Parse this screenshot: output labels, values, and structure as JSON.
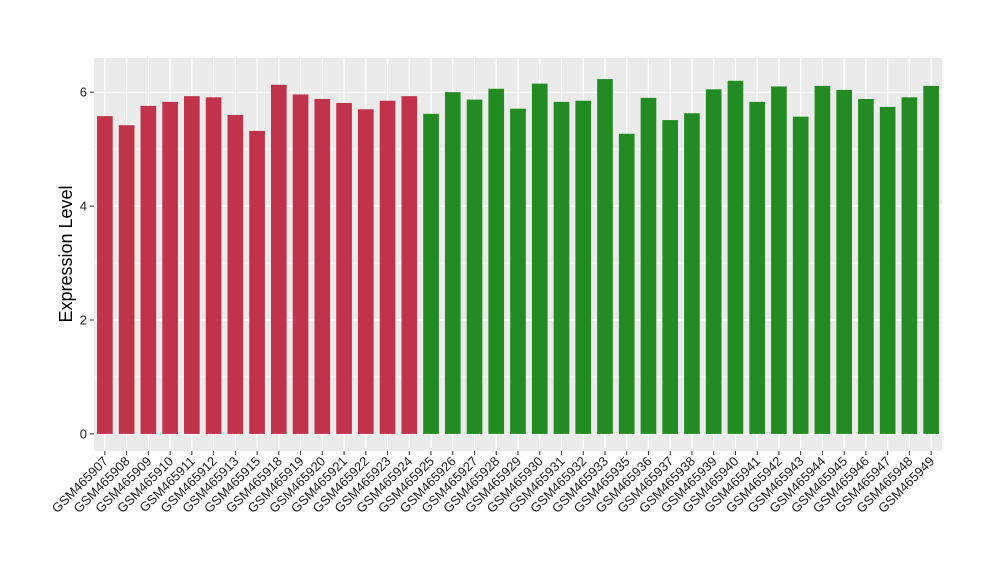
{
  "chart_data": {
    "type": "bar",
    "title": "",
    "xlabel": "",
    "ylabel": "Expression Level",
    "ylim": [
      -0.3,
      6.6
    ],
    "yticks": [
      0,
      2,
      4,
      6
    ],
    "grid": true,
    "panel_background": "#ebebeb",
    "grid_color": "#ffffff",
    "categories": [
      "GSM465907",
      "GSM465908",
      "GSM465909",
      "GSM465910",
      "GSM465911",
      "GSM465912",
      "GSM465913",
      "GSM465915",
      "GSM465918",
      "GSM465919",
      "GSM465920",
      "GSM465921",
      "GSM465922",
      "GSM465923",
      "GSM465924",
      "GSM465925",
      "GSM465926",
      "GSM465927",
      "GSM465928",
      "GSM465929",
      "GSM465930",
      "GSM465931",
      "GSM465932",
      "GSM465933",
      "GSM465935",
      "GSM465936",
      "GSM465937",
      "GSM465938",
      "GSM465939",
      "GSM465940",
      "GSM465941",
      "GSM465942",
      "GSM465943",
      "GSM465944",
      "GSM465945",
      "GSM465946",
      "GSM465947",
      "GSM465948",
      "GSM465949"
    ],
    "values": [
      5.58,
      5.42,
      5.76,
      5.83,
      5.93,
      5.91,
      5.6,
      5.32,
      6.13,
      5.96,
      5.88,
      5.81,
      5.7,
      5.85,
      5.93,
      5.62,
      6.0,
      5.87,
      6.06,
      5.71,
      6.15,
      5.83,
      5.85,
      6.23,
      5.27,
      5.9,
      5.51,
      5.63,
      6.05,
      6.2,
      5.83,
      6.1,
      5.57,
      6.11,
      6.04,
      5.88,
      5.74,
      5.91,
      6.11
    ],
    "groups": [
      "red",
      "red",
      "red",
      "red",
      "red",
      "red",
      "red",
      "red",
      "red",
      "red",
      "red",
      "red",
      "red",
      "red",
      "red",
      "green",
      "green",
      "green",
      "green",
      "green",
      "green",
      "green",
      "green",
      "green",
      "green",
      "green",
      "green",
      "green",
      "green",
      "green",
      "green",
      "green",
      "green",
      "green",
      "green",
      "green",
      "green",
      "green",
      "green"
    ],
    "colors": {
      "red": "#c0334a",
      "green": "#228b22"
    }
  }
}
